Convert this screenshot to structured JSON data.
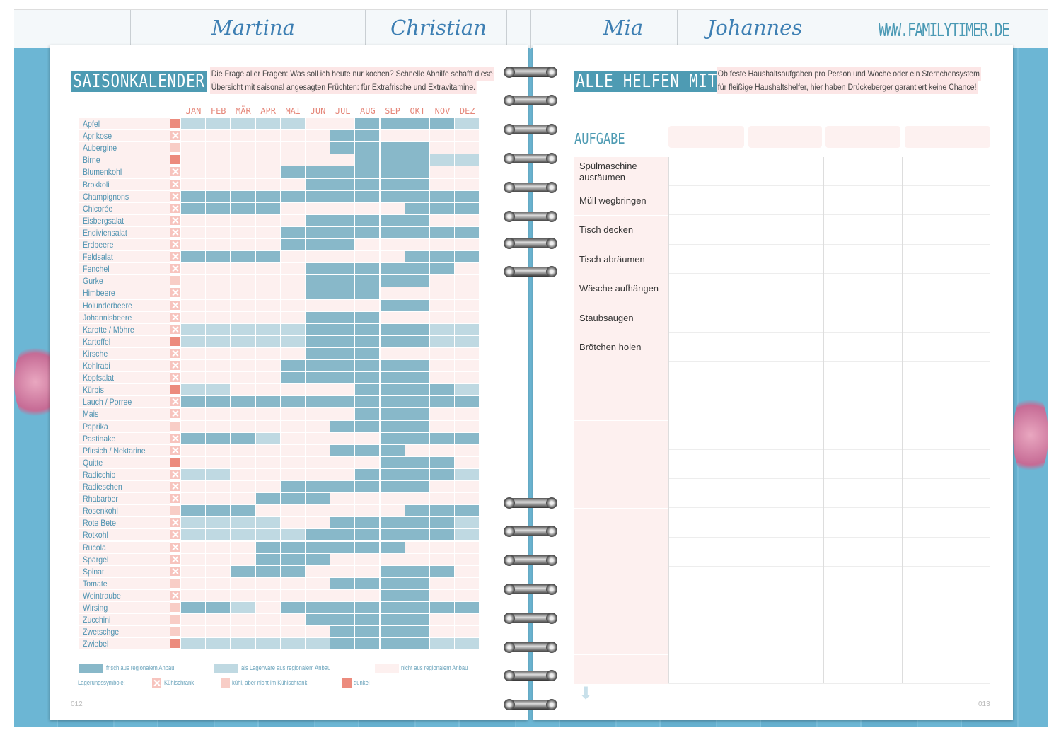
{
  "tabs": {
    "names": [
      "Martina",
      "Christian",
      "Mia",
      "Johannes"
    ],
    "url": "WWW.FAMILYTIMER.DE"
  },
  "left": {
    "title": "SAISONKALENDER",
    "intro": [
      "Die Frage aller Fragen: Was soll ich heute nur kochen? Schnelle Abhilfe schafft diese",
      "Übersicht mit saisonal angesagten Früchten: für Extrafrische und Extravitamine."
    ],
    "page_number": "012"
  },
  "chart_data": {
    "type": "table",
    "title": "SAISONKALENDER",
    "months": [
      "JAN",
      "FEB",
      "MÄR",
      "APR",
      "MAI",
      "JUN",
      "JUL",
      "AUG",
      "SEP",
      "OKT",
      "NOV",
      "DEZ"
    ],
    "legend_codes": {
      "D": "frisch aus regionalem Anbau",
      "L": "als Lagerware aus regionalem Anbau",
      ".": "nicht aus regionalem Anbau",
      "k": "Kühlschrank",
      "c": "kühl, aber nicht im Kühlschrank",
      "d": "dunkel"
    },
    "rows": [
      [
        "Apfel",
        "d",
        "LLLLL..DDDDL"
      ],
      [
        "Aprikose",
        "k",
        "......DD...."
      ],
      [
        "Aubergine",
        "c",
        "......DDDD.."
      ],
      [
        "Birne",
        "d",
        ".......DDDLL"
      ],
      [
        "Blumenkohl",
        "k",
        "....DDDDDD.."
      ],
      [
        "Brokkoli",
        "k",
        ".....DDDDD.."
      ],
      [
        "Champignons",
        "k",
        "DDDDDDDDDDDD"
      ],
      [
        "Chicorée",
        "k",
        "DDDD.....DDD"
      ],
      [
        "Eisbergsalat",
        "k",
        ".....DDDDD.."
      ],
      [
        "Endiviensalat",
        "k",
        "....DDDDDDDD"
      ],
      [
        "Erdbeere",
        "k",
        "....DDD....."
      ],
      [
        "Feldsalat",
        "k",
        "DDDD.....DDD"
      ],
      [
        "Fenchel",
        "k",
        ".....DDDDDD."
      ],
      [
        "Gurke",
        "c",
        ".....DDDDD.."
      ],
      [
        "Himbeere",
        "k",
        ".....DDD...."
      ],
      [
        "Holunderbeere",
        "k",
        "........DD.."
      ],
      [
        "Johannisbeere",
        "k",
        ".....DDD...."
      ],
      [
        "Karotte / Möhre",
        "k",
        "LLLLLDDDDDLL"
      ],
      [
        "Kartoffel",
        "d",
        "LLLLLDDDDDLL"
      ],
      [
        "Kirsche",
        "k",
        ".....DDD...."
      ],
      [
        "Kohlrabi",
        "k",
        "....DDDDDD.."
      ],
      [
        "Kopfsalat",
        "k",
        "....DDDDDD.."
      ],
      [
        "Kürbis",
        "d",
        "LL.....DDDDL"
      ],
      [
        "Lauch / Porree",
        "k",
        "DDDDDDDDDDDD"
      ],
      [
        "Mais",
        "k",
        ".......DDD.."
      ],
      [
        "Paprika",
        "c",
        "......DDDD.."
      ],
      [
        "Pastinake",
        "k",
        "DDDL....DDDD"
      ],
      [
        "Pfirsich / Nektarine",
        "k",
        "......DDD..."
      ],
      [
        "Quitte",
        "d",
        "........DDD."
      ],
      [
        "Radicchio",
        "k",
        "LL.....DDDDL"
      ],
      [
        "Radieschen",
        "k",
        "....DDDDDD.."
      ],
      [
        "Rhabarber",
        "k",
        "...DDD......"
      ],
      [
        "Rosenkohl",
        "c",
        "DDD......DDD"
      ],
      [
        "Rote Bete",
        "k",
        "LLLL..DDDDDL"
      ],
      [
        "Rotkohl",
        "k",
        "LLLLLDDDDDDL"
      ],
      [
        "Rucola",
        "k",
        "...DDDDDD..."
      ],
      [
        "Spargel",
        "k",
        "...DDD......"
      ],
      [
        "Spinat",
        "k",
        "..DDD...DDD."
      ],
      [
        "Tomate",
        "c",
        "......DDDD.."
      ],
      [
        "Weintraube",
        "k",
        "........DD.."
      ],
      [
        "Wirsing",
        "c",
        "DDL.DDDDDDDD"
      ],
      [
        "Zucchini",
        "c",
        ".....DDDDD.."
      ],
      [
        "Zwetschge",
        "c",
        "......DDDD.."
      ],
      [
        "Zwiebel",
        "d",
        "LLLLLLDDDDLL"
      ]
    ]
  },
  "legend": {
    "fresh": "frisch aus regionalem Anbau",
    "stored": "als Lagerware aus regionalem Anbau",
    "not_regional": "nicht aus regionalem Anbau",
    "storage_label": "Lagerungssymbole:",
    "fridge": "Kühlschrank",
    "cool": "kühl, aber nicht im Kühlschrank",
    "dark": "dunkel"
  },
  "right": {
    "title": "ALLE HELFEN MIT",
    "intro": [
      "Ob feste Haushaltsaufgaben pro Person und Woche oder ein Sternchensystem",
      "für fleißige Haushaltshelfer, hier haben Drückeberger garantiert keine Chance!"
    ],
    "column_header": "AUFGABE",
    "tasks": [
      "Spülmaschine ausräumen",
      "Müll wegbringen",
      "Tisch decken",
      "Tisch abräumen",
      "Wäsche aufhängen",
      "Staubsaugen",
      "Brötchen holen",
      "",
      "",
      "",
      "",
      "",
      "",
      "",
      "",
      "",
      "",
      ""
    ],
    "page_number": "013"
  },
  "colors": {
    "dark": "#88b8c9",
    "light": "#bfd9e2",
    "pink": "#fdf0ef",
    "accent": "#4e9bb3",
    "salmon": "#ec8b7d"
  }
}
